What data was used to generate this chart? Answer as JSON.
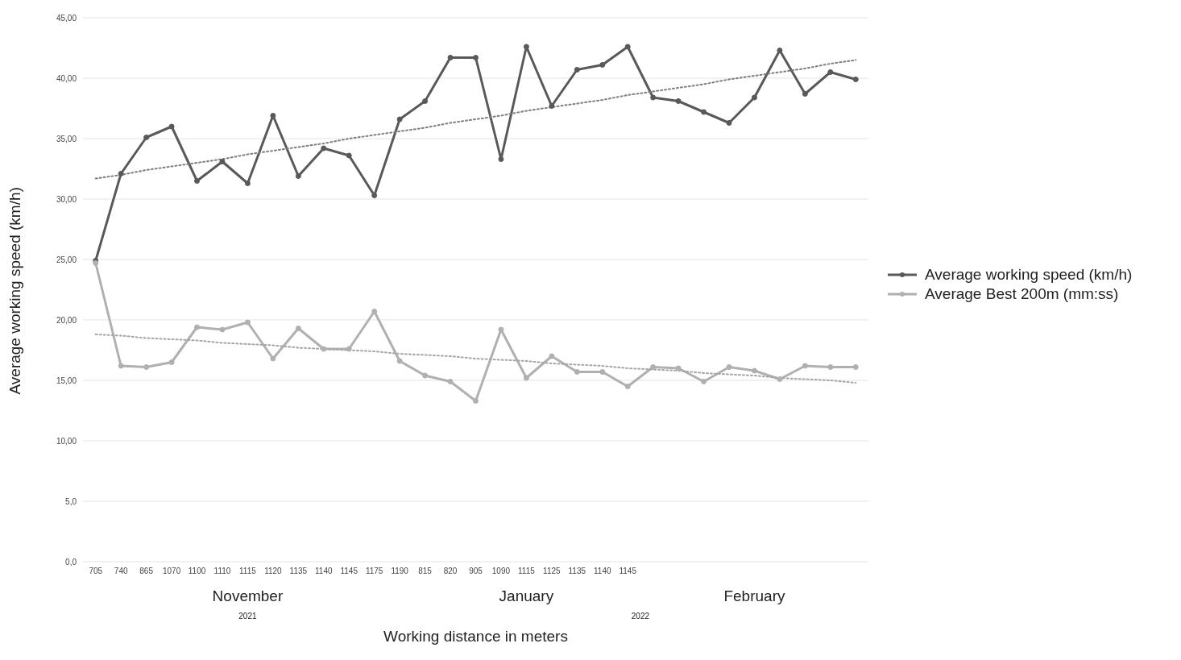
{
  "chart_data": {
    "type": "line",
    "xlabel": "Working distance in meters",
    "ylabel": "Average working speed (km/h)",
    "categories": [
      "705",
      "740",
      "865",
      "1070",
      "1100",
      "1110",
      "1115",
      "1120",
      "1135",
      "1140",
      "1145",
      "1175",
      "1190",
      "815",
      "820",
      "905",
      "1090",
      "1115",
      "1125",
      "1135",
      "1140",
      "1145",
      null,
      null,
      null,
      null,
      null,
      null,
      null,
      null,
      null
    ],
    "series": [
      {
        "name": "Average working speed (km/h)",
        "color": "#595959",
        "values": [
          24.9,
          32.1,
          35.1,
          36.0,
          31.5,
          33.1,
          31.3,
          36.9,
          31.9,
          34.2,
          33.6,
          30.3,
          36.6,
          38.1,
          41.7,
          41.7,
          33.3,
          42.6,
          37.7,
          40.7,
          41.1,
          42.6,
          38.4,
          38.1,
          37.2,
          36.3,
          38.4,
          42.3,
          38.7,
          40.5,
          39.9
        ]
      },
      {
        "name": "Average Best 200m (mm:ss)",
        "color": "#b0b0b0",
        "values": [
          24.7,
          16.2,
          16.1,
          16.5,
          19.4,
          19.2,
          19.8,
          16.8,
          19.3,
          17.6,
          17.6,
          20.7,
          16.6,
          15.4,
          14.9,
          13.3,
          19.2,
          15.2,
          17.0,
          15.7,
          15.7,
          14.5,
          16.1,
          16.0,
          14.9,
          16.1,
          15.8,
          15.1,
          16.2,
          16.1,
          16.1
        ]
      },
      {
        "color": "#7f7f7f",
        "line_style": "dotted",
        "marker": "none",
        "values": [
          31.7,
          32.0,
          32.4,
          32.7,
          33.0,
          33.3,
          33.7,
          34.0,
          34.3,
          34.6,
          35.0,
          35.3,
          35.6,
          35.9,
          36.3,
          36.6,
          36.9,
          37.3,
          37.6,
          37.9,
          38.2,
          38.6,
          38.9,
          39.2,
          39.5,
          39.9,
          40.2,
          40.5,
          40.8,
          41.2,
          41.5
        ]
      },
      {
        "color": "#a6a6a6",
        "line_style": "dotted",
        "marker": "none",
        "values": [
          18.8,
          18.7,
          18.5,
          18.4,
          18.3,
          18.1,
          18.0,
          17.9,
          17.7,
          17.6,
          17.5,
          17.4,
          17.2,
          17.1,
          17.0,
          16.8,
          16.7,
          16.6,
          16.4,
          16.3,
          16.2,
          16.0,
          15.9,
          15.8,
          15.6,
          15.5,
          15.4,
          15.2,
          15.1,
          15.0,
          14.8
        ]
      }
    ],
    "ylim": [
      0,
      45
    ],
    "yticks": [
      {
        "value": 0,
        "label": "0,0"
      },
      {
        "value": 5,
        "label": "5,0"
      },
      {
        "value": 10,
        "label": "10,00"
      },
      {
        "value": 15,
        "label": "15,00"
      },
      {
        "value": 20,
        "label": "20,00"
      },
      {
        "value": 25,
        "label": "25,00"
      },
      {
        "value": 30,
        "label": "30,00"
      },
      {
        "value": 35,
        "label": "35,00"
      },
      {
        "value": 40,
        "label": "40,00"
      },
      {
        "value": 45,
        "label": "45,00"
      }
    ],
    "grid": "y",
    "legend": "right",
    "marker": "circle",
    "line_style": "solid",
    "annotations": [
      "November",
      "January",
      "February",
      "2021",
      "2022"
    ]
  }
}
